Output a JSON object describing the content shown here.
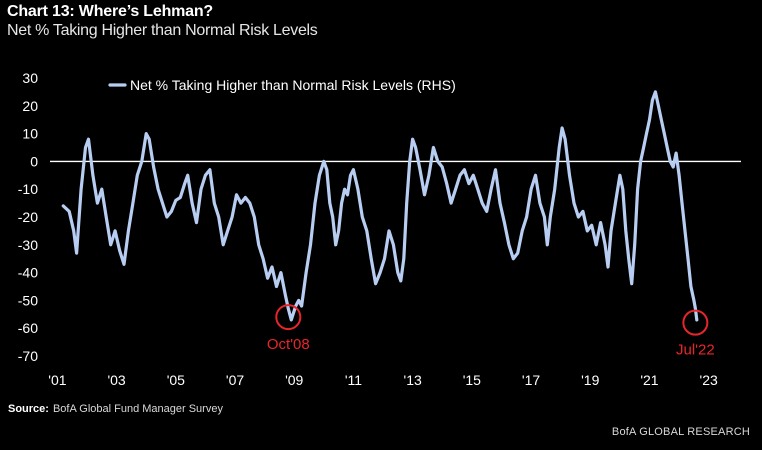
{
  "title": "Chart 13: Where’s Lehman?",
  "subtitle": "Net % Taking Higher than Normal Risk Levels",
  "source_label": "Source:",
  "source_text": "BofA Global Fund Manager Survey",
  "brand": "BofA GLOBAL RESEARCH",
  "colors": {
    "background": "#000000",
    "line": "#b8cdf2",
    "annotation": "#e8262a",
    "text": "#ffffff"
  },
  "chart_data": {
    "type": "line",
    "title": "Chart 13: Where’s Lehman?",
    "subtitle": "Net % Taking Higher than Normal Risk Levels",
    "xlabel": "",
    "ylabel": "",
    "xlim": [
      2000.75,
      2023.45
    ],
    "ylim": [
      -70,
      30
    ],
    "yticks": [
      30,
      20,
      10,
      0,
      -10,
      -20,
      -30,
      -40,
      -50,
      -60,
      -70
    ],
    "xtick_values": [
      2001,
      2003,
      2005,
      2007,
      2009,
      2011,
      2013,
      2015,
      2017,
      2019,
      2021,
      2023
    ],
    "xtick_labels": [
      "'01",
      "'03",
      "'05",
      "'07",
      "'09",
      "'11",
      "'13",
      "'15",
      "'17",
      "'19",
      "'21",
      "'23"
    ],
    "zero_line": true,
    "grid": false,
    "legend_position": "top-left",
    "series": [
      {
        "name": "Net % Taking Higher than Normal Risk Levels (RHS)",
        "points": [
          [
            2001.2,
            -16
          ],
          [
            2001.4,
            -18
          ],
          [
            2001.55,
            -25
          ],
          [
            2001.65,
            -33
          ],
          [
            2001.8,
            -10
          ],
          [
            2001.95,
            5
          ],
          [
            2002.05,
            8
          ],
          [
            2002.2,
            -5
          ],
          [
            2002.35,
            -15
          ],
          [
            2002.5,
            -10
          ],
          [
            2002.65,
            -20
          ],
          [
            2002.8,
            -30
          ],
          [
            2002.95,
            -25
          ],
          [
            2003.1,
            -32
          ],
          [
            2003.25,
            -37
          ],
          [
            2003.4,
            -25
          ],
          [
            2003.55,
            -15
          ],
          [
            2003.7,
            -5
          ],
          [
            2003.85,
            0
          ],
          [
            2004.0,
            10
          ],
          [
            2004.1,
            8
          ],
          [
            2004.25,
            -2
          ],
          [
            2004.4,
            -10
          ],
          [
            2004.55,
            -15
          ],
          [
            2004.7,
            -20
          ],
          [
            2004.85,
            -18
          ],
          [
            2005.0,
            -14
          ],
          [
            2005.15,
            -13
          ],
          [
            2005.3,
            -8
          ],
          [
            2005.4,
            -5
          ],
          [
            2005.55,
            -15
          ],
          [
            2005.7,
            -22
          ],
          [
            2005.85,
            -10
          ],
          [
            2006.0,
            -5
          ],
          [
            2006.15,
            -3
          ],
          [
            2006.3,
            -15
          ],
          [
            2006.45,
            -20
          ],
          [
            2006.6,
            -30
          ],
          [
            2006.75,
            -25
          ],
          [
            2006.9,
            -20
          ],
          [
            2007.05,
            -12
          ],
          [
            2007.2,
            -15
          ],
          [
            2007.35,
            -13
          ],
          [
            2007.5,
            -15
          ],
          [
            2007.65,
            -20
          ],
          [
            2007.8,
            -30
          ],
          [
            2007.95,
            -35
          ],
          [
            2008.1,
            -42
          ],
          [
            2008.25,
            -38
          ],
          [
            2008.4,
            -45
          ],
          [
            2008.55,
            -40
          ],
          [
            2008.7,
            -48
          ],
          [
            2008.8,
            -53
          ],
          [
            2008.9,
            -57
          ],
          [
            2009.05,
            -52
          ],
          [
            2009.15,
            -50
          ],
          [
            2009.25,
            -52
          ],
          [
            2009.4,
            -40
          ],
          [
            2009.55,
            -30
          ],
          [
            2009.7,
            -15
          ],
          [
            2009.85,
            -5
          ],
          [
            2010.0,
            0
          ],
          [
            2010.1,
            -3
          ],
          [
            2010.2,
            -15
          ],
          [
            2010.3,
            -20
          ],
          [
            2010.4,
            -30
          ],
          [
            2010.5,
            -25
          ],
          [
            2010.6,
            -15
          ],
          [
            2010.7,
            -10
          ],
          [
            2010.8,
            -12
          ],
          [
            2010.9,
            -5
          ],
          [
            2011.0,
            -3
          ],
          [
            2011.15,
            -10
          ],
          [
            2011.3,
            -20
          ],
          [
            2011.45,
            -25
          ],
          [
            2011.6,
            -35
          ],
          [
            2011.75,
            -44
          ],
          [
            2011.9,
            -40
          ],
          [
            2012.05,
            -35
          ],
          [
            2012.2,
            -25
          ],
          [
            2012.35,
            -30
          ],
          [
            2012.5,
            -40
          ],
          [
            2012.6,
            -43
          ],
          [
            2012.7,
            -35
          ],
          [
            2012.8,
            -15
          ],
          [
            2012.9,
            0
          ],
          [
            2013.0,
            8
          ],
          [
            2013.1,
            5
          ],
          [
            2013.25,
            -3
          ],
          [
            2013.4,
            -12
          ],
          [
            2013.55,
            -5
          ],
          [
            2013.7,
            5
          ],
          [
            2013.85,
            0
          ],
          [
            2014.0,
            -2
          ],
          [
            2014.15,
            -8
          ],
          [
            2014.3,
            -15
          ],
          [
            2014.45,
            -10
          ],
          [
            2014.6,
            -5
          ],
          [
            2014.75,
            -3
          ],
          [
            2014.9,
            -8
          ],
          [
            2015.05,
            -5
          ],
          [
            2015.2,
            -10
          ],
          [
            2015.35,
            -15
          ],
          [
            2015.5,
            -18
          ],
          [
            2015.65,
            -10
          ],
          [
            2015.8,
            -3
          ],
          [
            2015.95,
            -15
          ],
          [
            2016.1,
            -22
          ],
          [
            2016.25,
            -30
          ],
          [
            2016.4,
            -35
          ],
          [
            2016.55,
            -33
          ],
          [
            2016.7,
            -25
          ],
          [
            2016.85,
            -20
          ],
          [
            2017.0,
            -10
          ],
          [
            2017.15,
            -5
          ],
          [
            2017.3,
            -15
          ],
          [
            2017.45,
            -20
          ],
          [
            2017.55,
            -30
          ],
          [
            2017.65,
            -20
          ],
          [
            2017.8,
            -10
          ],
          [
            2017.95,
            5
          ],
          [
            2018.05,
            12
          ],
          [
            2018.15,
            8
          ],
          [
            2018.3,
            -5
          ],
          [
            2018.45,
            -15
          ],
          [
            2018.6,
            -20
          ],
          [
            2018.75,
            -18
          ],
          [
            2018.9,
            -25
          ],
          [
            2019.05,
            -23
          ],
          [
            2019.2,
            -30
          ],
          [
            2019.35,
            -22
          ],
          [
            2019.5,
            -30
          ],
          [
            2019.6,
            -38
          ],
          [
            2019.7,
            -25
          ],
          [
            2019.85,
            -15
          ],
          [
            2020.0,
            -5
          ],
          [
            2020.1,
            -10
          ],
          [
            2020.2,
            -25
          ],
          [
            2020.3,
            -35
          ],
          [
            2020.4,
            -44
          ],
          [
            2020.5,
            -30
          ],
          [
            2020.6,
            -10
          ],
          [
            2020.7,
            0
          ],
          [
            2020.8,
            5
          ],
          [
            2020.9,
            10
          ],
          [
            2021.0,
            15
          ],
          [
            2021.1,
            22
          ],
          [
            2021.2,
            25
          ],
          [
            2021.3,
            20
          ],
          [
            2021.4,
            15
          ],
          [
            2021.5,
            10
          ],
          [
            2021.6,
            5
          ],
          [
            2021.7,
            0
          ],
          [
            2021.8,
            -2
          ],
          [
            2021.9,
            3
          ],
          [
            2022.0,
            -5
          ],
          [
            2022.1,
            -15
          ],
          [
            2022.2,
            -25
          ],
          [
            2022.3,
            -35
          ],
          [
            2022.4,
            -45
          ],
          [
            2022.5,
            -50
          ],
          [
            2022.55,
            -53
          ],
          [
            2022.6,
            -57
          ]
        ]
      }
    ],
    "annotations": [
      {
        "label": "Oct'08",
        "x": 2008.8,
        "y": -56
      },
      {
        "label": "Jul'22",
        "x": 2022.55,
        "y": -58
      }
    ]
  }
}
